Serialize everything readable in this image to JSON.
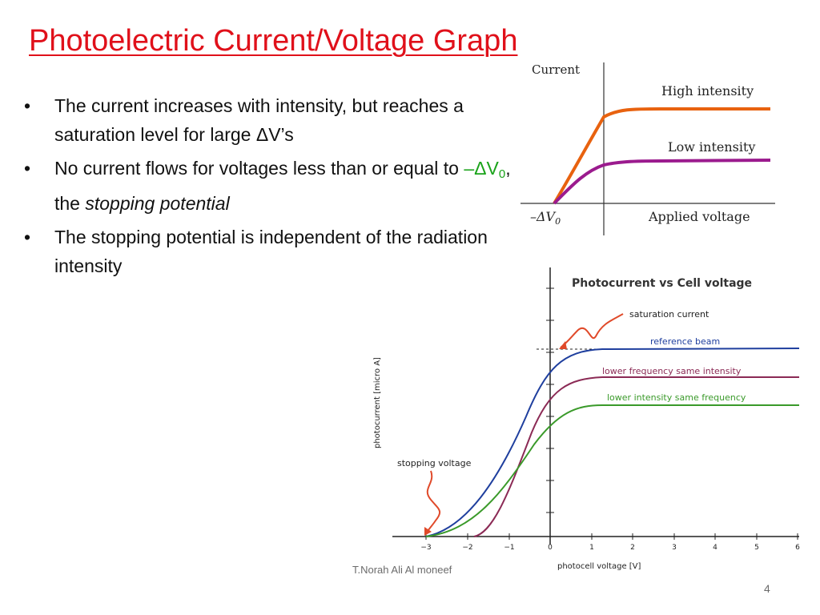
{
  "title": "Photoelectric Current/Voltage Graph",
  "bullets": {
    "b1": "The current increases with intensity, but reaches a saturation level for large ΔV’s",
    "b2_pre": "No current flows for voltages less than or equal to ",
    "b2_sym_dash": "–ΔV",
    "b2_sym_sub": "0",
    "b2_mid": ", the ",
    "b2_italic": "stopping potential",
    "b3": "The stopping potential is independent of the radiation intensity"
  },
  "graph1": {
    "y_label": "Current",
    "curve_high": "High intensity",
    "curve_low": "Low intensity",
    "x_label": "Applied voltage",
    "stop_label": "–ΔV",
    "stop_sub": "0",
    "colors": {
      "high": "#e8620f",
      "low": "#9b1b8e"
    }
  },
  "graph2": {
    "title": "Photocurrent vs Cell voltage",
    "ylabel": "photocurrent [micro A]",
    "xlabel": "photocell voltage [V]",
    "annotation_saturation": "saturation current",
    "annotation_stopping": "stopping voltage",
    "series": [
      {
        "name": "reference beam",
        "color": "#1f3f9e"
      },
      {
        "name": "lower frequency same intensity",
        "color": "#8b2a55"
      },
      {
        "name": "lower intensity same frequency",
        "color": "#3a9a2a"
      }
    ],
    "ticks": [
      "−3",
      "−2",
      "−1",
      "0",
      "1",
      "2",
      "3",
      "4",
      "5",
      "6"
    ]
  },
  "footer": "T.Norah Ali Al moneef",
  "page_number": "4"
}
